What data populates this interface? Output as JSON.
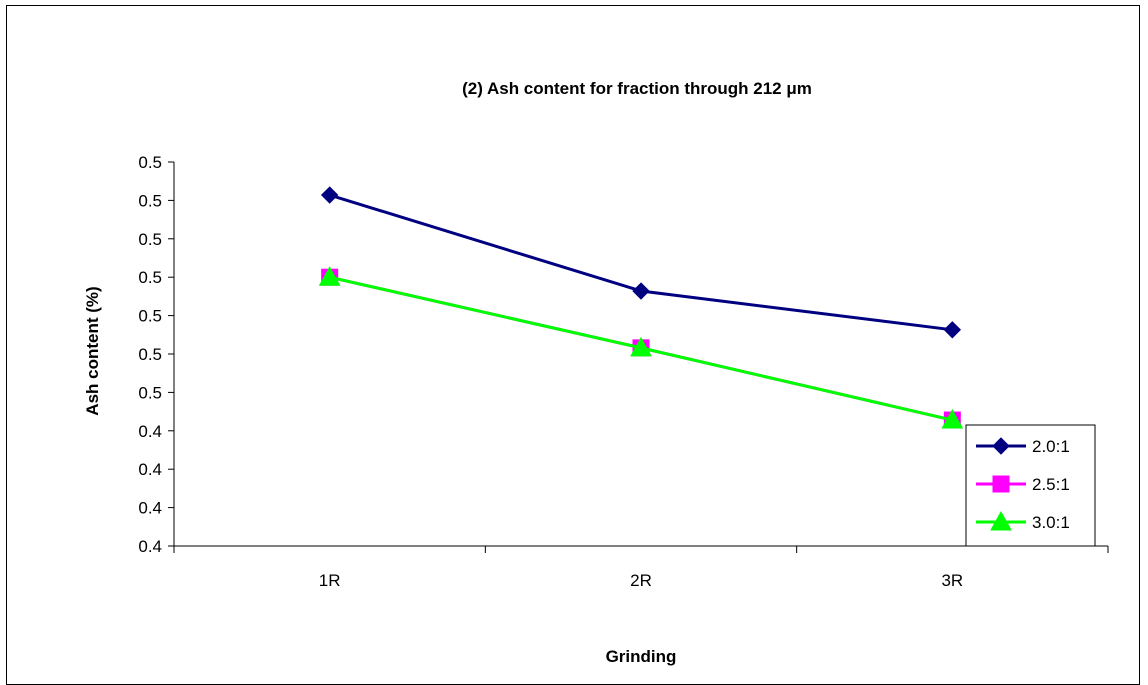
{
  "chart_data": {
    "type": "line",
    "title": "(2) Ash content for fraction through 212 μm",
    "xlabel": "Grinding",
    "ylabel": "Ash content (%)",
    "categories": [
      "1R",
      "2R",
      "3R"
    ],
    "y_tick_labels": [
      "0.4",
      "0.4",
      "0.4",
      "0.4",
      "0.5",
      "0.5",
      "0.5",
      "0.5",
      "0.5",
      "0.5",
      "0.5"
    ],
    "ylim": [
      0.4,
      0.5
    ],
    "series": [
      {
        "name": "2.0:1",
        "values": [
          0.4914,
          0.4664,
          0.4563
        ],
        "color": "#000080",
        "marker": "diamond"
      },
      {
        "name": "2.5:1",
        "values": [
          0.47,
          0.4516,
          0.4328
        ],
        "color": "#FF00FF",
        "marker": "square"
      },
      {
        "name": "3.0:1",
        "values": [
          0.47,
          0.4516,
          0.4328
        ],
        "color": "#00FF00",
        "marker": "triangle"
      }
    ],
    "grid": false,
    "legend_position": "bottom-right"
  }
}
